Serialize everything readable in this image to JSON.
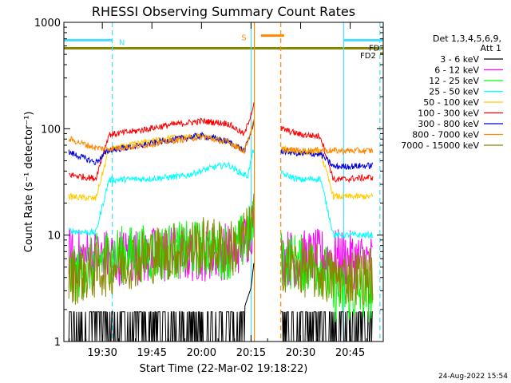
{
  "chart_data": {
    "type": "line",
    "title": "RHESSI Observing Summary Count Rates",
    "xlabel": "Start Time (22-Mar-02 19:18:22)",
    "ylabel": "Count Rate (s⁻¹ detector⁻¹)",
    "y_scale": "log",
    "ylim": [
      1,
      1000
    ],
    "xlim": [
      "19:18:22",
      "20:55:00"
    ],
    "x_ticks": [
      "19:30",
      "19:45",
      "20:00",
      "20:15",
      "20:30",
      "20:45"
    ],
    "y_ticks": [
      "1",
      "10",
      "100",
      "1000"
    ],
    "legend_header": [
      "Det 1,3,4,5,6,9,",
      "Att 1"
    ],
    "legend_position": "right",
    "series": [
      {
        "name": "3 - 6 keV",
        "color": "#000000",
        "points": [
          [
            "19:20",
            1.4
          ],
          [
            "19:35",
            1.4
          ],
          [
            "19:50",
            1.5
          ],
          [
            "20:05",
            1.5
          ],
          [
            "20:12",
            1.7
          ],
          [
            "20:15",
            3.2
          ],
          [
            "20:16",
            6
          ],
          [
            "20:24",
            2.5
          ],
          [
            "20:27",
            1.5
          ],
          [
            "20:35",
            1.4
          ],
          [
            "20:45",
            1.3
          ],
          [
            "20:52",
            1.3
          ]
        ]
      },
      {
        "name": "6 - 12 keV",
        "color": "#ff00ff",
        "points": [
          [
            "19:20",
            6.2
          ],
          [
            "19:32",
            6.2
          ],
          [
            "19:45",
            6.4
          ],
          [
            "20:00",
            6.8
          ],
          [
            "20:10",
            7.2
          ],
          [
            "20:14",
            10
          ],
          [
            "20:16",
            14
          ],
          [
            "20:24",
            6.2
          ],
          [
            "20:30",
            6
          ],
          [
            "20:40",
            6.2
          ],
          [
            "20:52",
            5.5
          ]
        ]
      },
      {
        "name": "12 - 25 keV",
        "color": "#00ff00",
        "points": [
          [
            "19:20",
            4
          ],
          [
            "19:32",
            6.5
          ],
          [
            "19:45",
            6.8
          ],
          [
            "20:00",
            7.5
          ],
          [
            "20:10",
            7
          ],
          [
            "20:15",
            11
          ],
          [
            "20:16",
            13
          ],
          [
            "20:24",
            6
          ],
          [
            "20:30",
            5.5
          ],
          [
            "20:37",
            5
          ],
          [
            "20:40",
            2.8
          ],
          [
            "20:52",
            2.8
          ]
        ]
      },
      {
        "name": "25 - 50 keV",
        "color": "#00ffff",
        "points": [
          [
            "19:20",
            11
          ],
          [
            "19:28",
            10.5
          ],
          [
            "19:32",
            33
          ],
          [
            "19:45",
            34
          ],
          [
            "19:55",
            36
          ],
          [
            "20:03",
            43
          ],
          [
            "20:08",
            46
          ],
          [
            "20:12",
            38
          ],
          [
            "20:14",
            36
          ],
          [
            "20:16",
            70
          ],
          [
            "20:24",
            38
          ],
          [
            "20:30",
            33
          ],
          [
            "20:36",
            34
          ],
          [
            "20:40",
            10
          ],
          [
            "20:52",
            10
          ]
        ]
      },
      {
        "name": "50 - 100 keV",
        "color": "#ffcc00",
        "points": [
          [
            "19:20",
            23
          ],
          [
            "19:28",
            22
          ],
          [
            "19:32",
            63
          ],
          [
            "19:40",
            72
          ],
          [
            "19:50",
            82
          ],
          [
            "20:00",
            85
          ],
          [
            "20:08",
            75
          ],
          [
            "20:13",
            62
          ],
          [
            "20:16",
            115
          ],
          [
            "20:24",
            65
          ],
          [
            "20:30",
            60
          ],
          [
            "20:36",
            60
          ],
          [
            "20:40",
            23
          ],
          [
            "20:52",
            23
          ]
        ]
      },
      {
        "name": "100 - 300 keV",
        "color": "#ff0000",
        "points": [
          [
            "19:20",
            37
          ],
          [
            "19:28",
            34
          ],
          [
            "19:32",
            88
          ],
          [
            "19:40",
            95
          ],
          [
            "19:50",
            108
          ],
          [
            "20:00",
            118
          ],
          [
            "20:08",
            112
          ],
          [
            "20:13",
            88
          ],
          [
            "20:16",
            175
          ],
          [
            "20:24",
            100
          ],
          [
            "20:30",
            88
          ],
          [
            "20:36",
            85
          ],
          [
            "20:40",
            33
          ],
          [
            "20:52",
            35
          ]
        ]
      },
      {
        "name": "300 - 800 keV",
        "color": "#0000dd",
        "points": [
          [
            "19:20",
            60
          ],
          [
            "19:28",
            48
          ],
          [
            "19:32",
            63
          ],
          [
            "19:40",
            68
          ],
          [
            "19:50",
            78
          ],
          [
            "20:00",
            86
          ],
          [
            "20:08",
            76
          ],
          [
            "20:13",
            62
          ],
          [
            "20:16",
            115
          ],
          [
            "20:24",
            62
          ],
          [
            "20:30",
            58
          ],
          [
            "20:36",
            58
          ],
          [
            "20:40",
            44
          ],
          [
            "20:52",
            45
          ]
        ]
      },
      {
        "name": "800 - 7000 keV",
        "color": "#ff8800",
        "points": [
          [
            "19:20",
            80
          ],
          [
            "19:28",
            66
          ],
          [
            "19:32",
            65
          ],
          [
            "19:40",
            68
          ],
          [
            "19:50",
            76
          ],
          [
            "20:00",
            84
          ],
          [
            "20:08",
            75
          ],
          [
            "20:13",
            62
          ],
          [
            "20:16",
            120
          ],
          [
            "20:24",
            64
          ],
          [
            "20:30",
            62
          ],
          [
            "20:36",
            63
          ],
          [
            "20:40",
            62
          ],
          [
            "20:52",
            62
          ]
        ]
      },
      {
        "name": "7000 - 15000 keV",
        "color": "#888800",
        "points": [
          [
            "19:20",
            4
          ],
          [
            "19:32",
            5
          ],
          [
            "19:40",
            6
          ],
          [
            "19:50",
            7
          ],
          [
            "20:00",
            8
          ],
          [
            "20:10",
            7.5
          ],
          [
            "20:14",
            10
          ],
          [
            "20:16",
            14
          ],
          [
            "20:24",
            5.5
          ],
          [
            "20:30",
            5
          ],
          [
            "20:40",
            4
          ],
          [
            "20:52",
            4.2
          ]
        ]
      }
    ],
    "flags": [
      {
        "label": "N",
        "color": "#44ddff",
        "value": 680,
        "intervals": [
          [
            "19:18:22",
            "19:33"
          ],
          [
            "20:43",
            "20:55"
          ]
        ],
        "label_at": "19:35"
      },
      {
        "label": "S",
        "color": "#ff8800",
        "value": 750,
        "intervals": [
          [
            "20:18",
            "20:25"
          ]
        ],
        "label_at": "20:15"
      },
      {
        "label": "FD",
        "color": "#888800",
        "value": 570,
        "intervals": [
          [
            "19:18:22",
            "20:55"
          ]
        ],
        "label_at": "20:55"
      },
      {
        "label": "FD2",
        "color": "#888800",
        "value": 510,
        "intervals": [
          [
            "20:54",
            "20:55"
          ]
        ],
        "label_at": "20:48"
      }
    ],
    "gap_lines": [
      {
        "time": "19:33",
        "color": "#44ddff",
        "style": "dashed"
      },
      {
        "time": "20:15",
        "color": "#44ddff",
        "style": "solid"
      },
      {
        "time": "20:16",
        "color": "#ff8800",
        "style": "solid"
      },
      {
        "time": "20:24",
        "color": "#ff8800",
        "style": "dashed"
      },
      {
        "time": "20:43",
        "color": "#44ddff",
        "style": "solid"
      },
      {
        "time": "20:54",
        "color": "#44ddff",
        "style": "dashed"
      }
    ],
    "footer": "24-Aug-2022 15:54"
  }
}
